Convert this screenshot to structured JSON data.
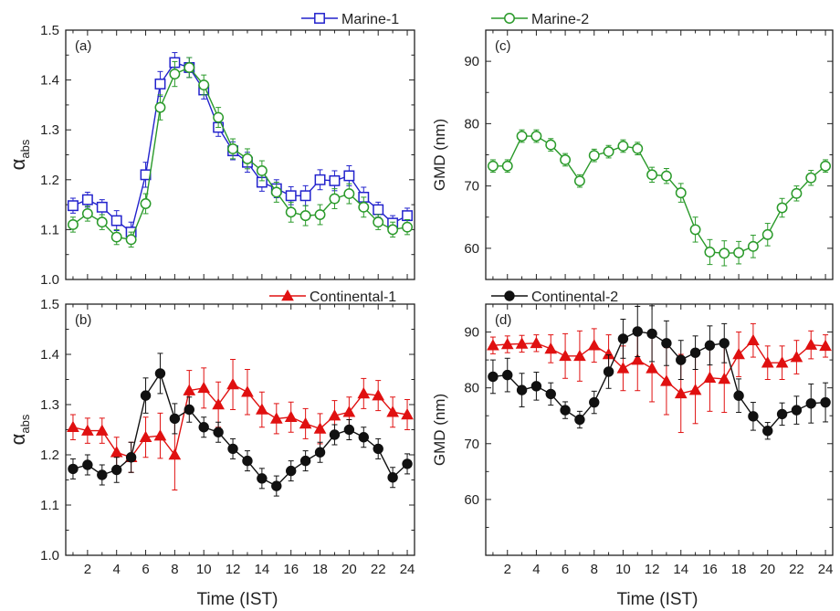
{
  "figure": {
    "x_axis_label": "Time (IST)",
    "x_tick_labels": [
      "2",
      "4",
      "6",
      "8",
      "10",
      "12",
      "14",
      "16",
      "18",
      "20",
      "22",
      "24"
    ]
  },
  "chart_data": [
    {
      "panel": "(a)",
      "type": "line",
      "ylabel": "α",
      "ylabel_sub": "abs",
      "xlim": [
        0.5,
        24.5
      ],
      "ylim": [
        1.0,
        1.5
      ],
      "yticks": [
        "1.0",
        "1.1",
        "1.2",
        "1.3",
        "1.4",
        "1.5"
      ],
      "ytick_values": [
        1.0,
        1.1,
        1.2,
        1.3,
        1.4,
        1.5
      ],
      "x": [
        1,
        2,
        3,
        4,
        5,
        6,
        7,
        8,
        9,
        10,
        11,
        12,
        13,
        14,
        15,
        16,
        17,
        18,
        19,
        20,
        21,
        22,
        23,
        24
      ],
      "series": [
        {
          "name": "Marine-1",
          "color": "#2222cc",
          "marker": "open-square",
          "values": [
            1.148,
            1.16,
            1.145,
            1.118,
            1.095,
            1.21,
            1.392,
            1.435,
            1.425,
            1.38,
            1.305,
            1.258,
            1.235,
            1.195,
            1.182,
            1.168,
            1.168,
            1.2,
            1.198,
            1.208,
            1.165,
            1.14,
            1.113,
            1.128
          ],
          "errors": [
            0.015,
            0.015,
            0.015,
            0.02,
            0.02,
            0.025,
            0.025,
            0.02,
            0.02,
            0.018,
            0.018,
            0.018,
            0.02,
            0.018,
            0.018,
            0.018,
            0.02,
            0.02,
            0.02,
            0.02,
            0.02,
            0.015,
            0.015,
            0.015
          ]
        },
        {
          "name": "Marine-2",
          "color": "#2a9a2a",
          "marker": "open-circle",
          "values": [
            1.11,
            1.132,
            1.115,
            1.085,
            1.08,
            1.152,
            1.345,
            1.412,
            1.425,
            1.39,
            1.325,
            1.262,
            1.242,
            1.218,
            1.175,
            1.135,
            1.128,
            1.13,
            1.162,
            1.172,
            1.145,
            1.115,
            1.1,
            1.105
          ],
          "errors": [
            0.015,
            0.015,
            0.015,
            0.015,
            0.015,
            0.02,
            0.025,
            0.025,
            0.02,
            0.02,
            0.02,
            0.02,
            0.02,
            0.02,
            0.02,
            0.02,
            0.02,
            0.02,
            0.02,
            0.02,
            0.02,
            0.015,
            0.015,
            0.015
          ]
        }
      ]
    },
    {
      "panel": "(b)",
      "type": "line",
      "ylabel": "α",
      "ylabel_sub": "abs",
      "xlim": [
        0.5,
        24.5
      ],
      "ylim": [
        1.0,
        1.5
      ],
      "yticks": [
        "1.0",
        "1.1",
        "1.2",
        "1.3",
        "1.4",
        "1.5"
      ],
      "ytick_values": [
        1.0,
        1.1,
        1.2,
        1.3,
        1.4,
        1.5
      ],
      "x": [
        1,
        2,
        3,
        4,
        5,
        6,
        7,
        8,
        9,
        10,
        11,
        12,
        13,
        14,
        15,
        16,
        17,
        18,
        19,
        20,
        21,
        22,
        23,
        24
      ],
      "series": [
        {
          "name": "Continental-1",
          "color": "#e01010",
          "marker": "filled-triangle",
          "values": [
            1.255,
            1.248,
            1.248,
            1.205,
            1.195,
            1.235,
            1.238,
            1.2,
            1.328,
            1.333,
            1.3,
            1.34,
            1.325,
            1.29,
            1.272,
            1.275,
            1.262,
            1.252,
            1.278,
            1.285,
            1.322,
            1.318,
            1.285,
            1.28
          ],
          "errors": [
            0.025,
            0.025,
            0.025,
            0.03,
            0.03,
            0.04,
            0.045,
            0.07,
            0.04,
            0.04,
            0.045,
            0.05,
            0.045,
            0.035,
            0.03,
            0.03,
            0.03,
            0.03,
            0.03,
            0.03,
            0.03,
            0.03,
            0.03,
            0.03
          ]
        },
        {
          "name": "Continental-2",
          "color": "#111111",
          "marker": "filled-circle",
          "values": [
            1.172,
            1.18,
            1.16,
            1.17,
            1.195,
            1.318,
            1.362,
            1.272,
            1.29,
            1.255,
            1.245,
            1.212,
            1.188,
            1.153,
            1.138,
            1.168,
            1.188,
            1.205,
            1.24,
            1.25,
            1.235,
            1.212,
            1.155,
            1.182
          ],
          "errors": [
            0.02,
            0.02,
            0.02,
            0.025,
            0.03,
            0.035,
            0.04,
            0.03,
            0.025,
            0.02,
            0.02,
            0.02,
            0.02,
            0.02,
            0.02,
            0.02,
            0.02,
            0.02,
            0.02,
            0.02,
            0.02,
            0.02,
            0.02,
            0.02
          ]
        }
      ]
    },
    {
      "panel": "(c)",
      "type": "line",
      "ylabel": "GMD (nm)",
      "ylabel_sub": "",
      "xlim": [
        0.5,
        24.5
      ],
      "ylim": [
        55,
        95
      ],
      "yticks": [
        "60",
        "70",
        "80",
        "90"
      ],
      "ytick_values": [
        60,
        70,
        80,
        90
      ],
      "x": [
        1,
        2,
        3,
        4,
        5,
        6,
        7,
        8,
        9,
        10,
        11,
        12,
        13,
        14,
        15,
        16,
        17,
        18,
        19,
        20,
        21,
        22,
        23,
        24
      ],
      "series": [
        {
          "name": "Marine-2",
          "color": "#2a9a2a",
          "marker": "open-circle",
          "values": [
            73.2,
            73.2,
            78.0,
            78.0,
            76.6,
            74.2,
            70.8,
            74.9,
            75.5,
            76.4,
            76.0,
            71.8,
            71.6,
            68.9,
            63.0,
            59.4,
            59.2,
            59.3,
            60.3,
            62.2,
            66.5,
            68.8,
            71.3,
            73.2
          ],
          "errors": [
            1.0,
            1.0,
            1.0,
            1.0,
            1.0,
            1.0,
            1.0,
            1.0,
            1.0,
            1.0,
            1.0,
            1.2,
            1.2,
            1.5,
            2.0,
            2.0,
            2.0,
            1.8,
            1.8,
            1.8,
            1.5,
            1.2,
            1.2,
            1.0
          ]
        }
      ]
    },
    {
      "panel": "(d)",
      "type": "line",
      "ylabel": "GMD (nm)",
      "ylabel_sub": "",
      "xlim": [
        0.5,
        24.5
      ],
      "ylim": [
        50,
        95
      ],
      "yticks": [
        "60",
        "70",
        "80",
        "90"
      ],
      "ytick_values": [
        60,
        70,
        80,
        90
      ],
      "x": [
        1,
        2,
        3,
        4,
        5,
        6,
        7,
        8,
        9,
        10,
        11,
        12,
        13,
        14,
        15,
        16,
        17,
        18,
        19,
        20,
        21,
        22,
        23,
        24
      ],
      "series": [
        {
          "name": "Continental-1",
          "color": "#e01010",
          "marker": "filled-triangle",
          "values": [
            87.6,
            87.8,
            87.9,
            88.0,
            87.0,
            85.7,
            85.7,
            87.6,
            86.0,
            83.5,
            85.0,
            83.5,
            81.2,
            79.0,
            79.6,
            81.8,
            81.6,
            86.0,
            88.5,
            84.5,
            84.5,
            85.5,
            87.7,
            87.5
          ],
          "errors": [
            1.5,
            1.5,
            1.5,
            1.5,
            2.5,
            4.0,
            4.5,
            3.0,
            3.5,
            4.0,
            5.5,
            6.0,
            6.0,
            7.0,
            6.0,
            6.0,
            6.0,
            4.0,
            3.0,
            3.0,
            3.0,
            3.0,
            2.5,
            2.0
          ]
        },
        {
          "name": "Continental-2",
          "color": "#111111",
          "marker": "filled-circle",
          "values": [
            82.0,
            82.3,
            79.6,
            80.3,
            78.9,
            76.0,
            74.3,
            77.4,
            82.9,
            88.8,
            90.1,
            89.7,
            88.0,
            85.0,
            86.3,
            87.6,
            88.0,
            78.6,
            74.9,
            72.3,
            75.3,
            76.0,
            77.2,
            77.4
          ],
          "errors": [
            3.0,
            3.0,
            3.0,
            2.5,
            2.0,
            1.5,
            1.5,
            2.0,
            3.0,
            3.5,
            4.5,
            5.0,
            4.0,
            3.5,
            3.0,
            3.5,
            3.5,
            3.0,
            2.5,
            1.5,
            2.0,
            2.5,
            3.5,
            3.5
          ]
        }
      ]
    }
  ]
}
